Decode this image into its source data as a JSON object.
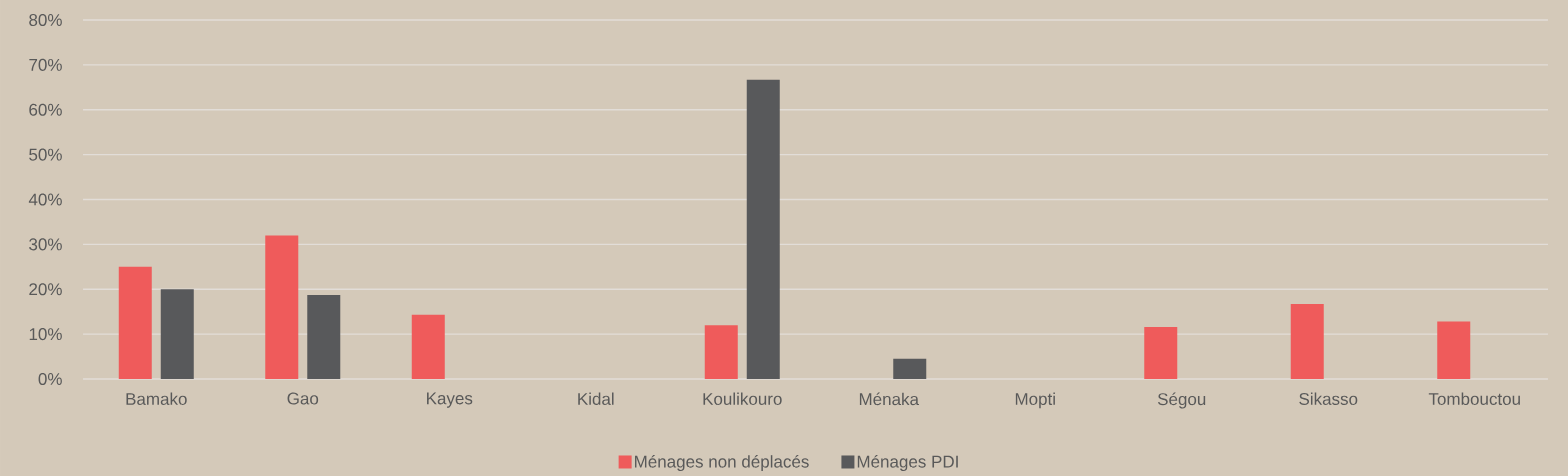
{
  "chart_data": {
    "type": "bar",
    "categories": [
      "Bamako",
      "Gao",
      "Kayes",
      "Kidal",
      "Koulikouro",
      "Ménaka",
      "Mopti",
      "Ségou",
      "Sikasso",
      "Tombouctou"
    ],
    "series": [
      {
        "name": "Ménages non déplacés",
        "color": "#ef5b5b",
        "values": [
          25,
          32,
          14.3,
          null,
          12,
          null,
          null,
          11.6,
          16.7,
          12.8
        ]
      },
      {
        "name": "Ménages PDI",
        "color": "#58595b",
        "values": [
          20,
          18.7,
          null,
          null,
          66.7,
          4.5,
          null,
          null,
          null,
          null
        ]
      }
    ],
    "ylim": [
      0,
      80
    ],
    "yticks": [
      {
        "value": 0,
        "label": "0%"
      },
      {
        "value": 10,
        "label": "10%"
      },
      {
        "value": 20,
        "label": "20%"
      },
      {
        "value": 30,
        "label": "30%"
      },
      {
        "value": 40,
        "label": "40%"
      },
      {
        "value": 50,
        "label": "50%"
      },
      {
        "value": 60,
        "label": "60%"
      },
      {
        "value": 70,
        "label": "70%"
      },
      {
        "value": 80,
        "label": "80%"
      }
    ],
    "grid": "y",
    "legend": "bottom"
  }
}
